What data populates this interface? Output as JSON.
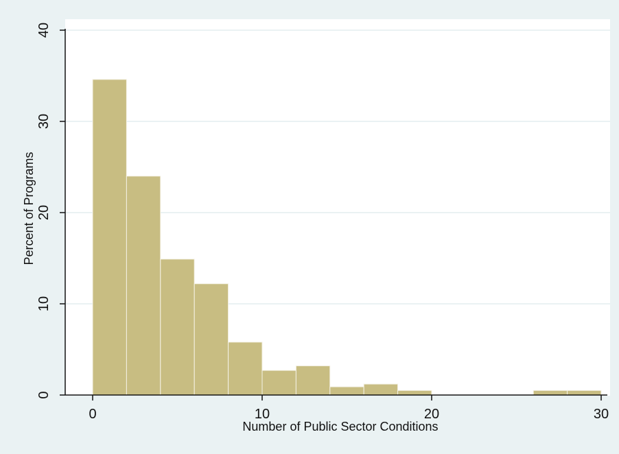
{
  "colors": {
    "outer_background": "#eaf2f3",
    "plot_background": "#ffffff",
    "bar_fill": "#c8bd82",
    "bar_edge": "#f5f2e6",
    "gridline": "#eaf2f3",
    "axis": "#111111",
    "text": "#111111"
  },
  "chart_data": {
    "type": "bar",
    "histogram": true,
    "title": "",
    "xlabel": "Number of Public Sector Conditions",
    "ylabel": "Percent of Programs",
    "xlim": [
      0,
      30
    ],
    "ylim": [
      0,
      40
    ],
    "x_ticks": [
      0,
      10,
      20,
      30
    ],
    "y_ticks": [
      0,
      10,
      20,
      30,
      40
    ],
    "grid": true,
    "legend": "none",
    "bin_width": 2,
    "bins": [
      {
        "start": 0,
        "end": 2,
        "value": 34.6
      },
      {
        "start": 2,
        "end": 4,
        "value": 24.0
      },
      {
        "start": 4,
        "end": 6,
        "value": 14.9
      },
      {
        "start": 6,
        "end": 8,
        "value": 12.2
      },
      {
        "start": 8,
        "end": 10,
        "value": 5.8
      },
      {
        "start": 10,
        "end": 12,
        "value": 2.7
      },
      {
        "start": 12,
        "end": 14,
        "value": 3.2
      },
      {
        "start": 14,
        "end": 16,
        "value": 0.9
      },
      {
        "start": 16,
        "end": 18,
        "value": 1.2
      },
      {
        "start": 18,
        "end": 20,
        "value": 0.5
      },
      {
        "start": 20,
        "end": 22,
        "value": 0.0
      },
      {
        "start": 22,
        "end": 24,
        "value": 0.0
      },
      {
        "start": 24,
        "end": 26,
        "value": 0.0
      },
      {
        "start": 26,
        "end": 28,
        "value": 0.5
      },
      {
        "start": 28,
        "end": 30,
        "value": 0.5
      }
    ]
  }
}
